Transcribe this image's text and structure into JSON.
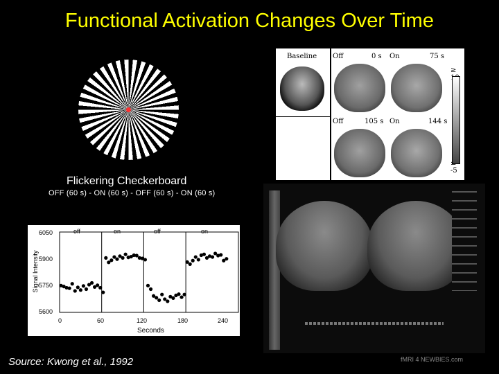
{
  "title": "Functional Activation Changes Over Time",
  "checkerboard": {
    "label": "Flickering Checkerboard",
    "sequence": "OFF (60 s) - ON (60 s) - OFF (60 s) - ON (60 s)"
  },
  "fmri_panel": {
    "labels": [
      "Baseline",
      "Off",
      "0 s",
      "On",
      "75 s",
      "Off",
      "105 s",
      "On",
      "144 s"
    ],
    "scale_top": "≥ 10",
    "scale_bottom": "≤ -5"
  },
  "graph": {
    "y_ticks": [
      "6050",
      "5900",
      "5750",
      "5600"
    ],
    "x_ticks": [
      "0",
      "60",
      "120",
      "180",
      "240"
    ],
    "xlabel": "Seconds",
    "ylabel": "Signal Intensity",
    "phases": [
      "off",
      "on",
      "off",
      "on"
    ]
  },
  "chart_data": {
    "type": "scatter",
    "title": "",
    "xlabel": "Seconds",
    "ylabel": "Signal Intensity",
    "xlim": [
      0,
      255
    ],
    "ylim": [
      5600,
      6050
    ],
    "series": [
      {
        "name": "",
        "x": [
          2,
          6,
          10,
          14,
          18,
          22,
          26,
          30,
          34,
          38,
          42,
          46,
          50,
          54,
          58,
          62,
          66,
          70,
          74,
          78,
          82,
          86,
          90,
          94,
          98,
          102,
          106,
          110,
          114,
          118,
          122,
          126,
          130,
          134,
          138,
          142,
          146,
          150,
          154,
          158,
          162,
          166,
          170,
          174,
          178,
          182,
          186,
          190,
          194,
          198,
          202,
          206,
          210,
          214,
          218,
          222,
          226,
          230,
          234,
          238
        ],
        "y": [
          5750,
          5745,
          5738,
          5735,
          5760,
          5720,
          5740,
          5725,
          5748,
          5730,
          5755,
          5765,
          5742,
          5752,
          5738,
          5712,
          5905,
          5880,
          5892,
          5910,
          5898,
          5915,
          5905,
          5925,
          5908,
          5912,
          5920,
          5918,
          5905,
          5902,
          5895,
          5750,
          5730,
          5692,
          5682,
          5668,
          5700,
          5674,
          5662,
          5688,
          5680,
          5695,
          5702,
          5685,
          5700,
          5882,
          5870,
          5890,
          5910,
          5895,
          5920,
          5925,
          5905,
          5915,
          5910,
          5930,
          5918,
          5922,
          5890,
          5900
        ]
      }
    ]
  },
  "source": "Source: Kwong et al., 1992",
  "logo": "fMRI 4 NEWBIES.com",
  "colors": {
    "title": "#ffff00",
    "background": "#000000"
  }
}
